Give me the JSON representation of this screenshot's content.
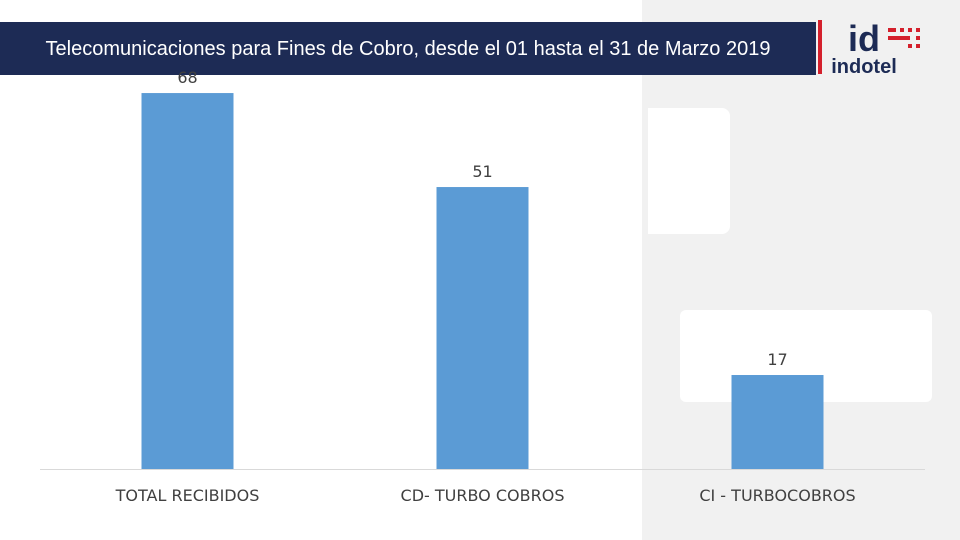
{
  "header": {
    "title": "Telecomunicaciones para Fines de Cobro, desde el 01 hasta el 31 de Marzo 2019"
  },
  "logo": {
    "mark": "id",
    "name": "indotel",
    "brand_color": "#d4202c",
    "text_color": "#1d2b55"
  },
  "chart_data": {
    "type": "bar",
    "title": "",
    "xlabel": "",
    "ylabel": "",
    "categories": [
      "TOTAL RECIBIDOS",
      "CD- TURBO COBROS",
      "CI - TURBOCOBROS"
    ],
    "values": [
      68,
      51,
      17
    ],
    "data_labels": [
      "68",
      "51",
      "17"
    ],
    "ylim": [
      0,
      70
    ],
    "grid": false,
    "legend": "none",
    "bar_color": "#5b9bd5"
  }
}
